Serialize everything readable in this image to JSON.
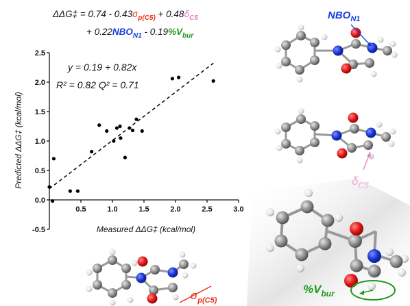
{
  "equation": {
    "line1": {
      "lhs": "ΔΔG‡",
      "eq_const": " = 0.74 - 0.43",
      "sigma": "σ",
      "sigma_sub": "p(C5)",
      "plus_d": " + 0.48",
      "delta": "δ",
      "delta_sub": "C5"
    },
    "line2": {
      "plus1": "+ 0.22",
      "nbo": "NBO",
      "nbo_sub": "N1",
      "minus": " - 0.19",
      "vbur": "%V",
      "vbur_sub": "bur"
    }
  },
  "chart_data": {
    "type": "scatter",
    "xlabel": "Measured ΔΔG‡  (kcal/mol)",
    "ylabel": "Predicted ΔΔG‡ (kcal/mol)",
    "xlim": [
      0,
      3.0
    ],
    "ylim": [
      -0.5,
      2.5
    ],
    "xticks": [
      "0.5",
      "1.0",
      "1.5",
      "2.0",
      "2.5",
      "3.0"
    ],
    "yticks": [
      "-0.5",
      "0.0",
      "0.5",
      "1.0",
      "1.5",
      "2.0",
      "2.5"
    ],
    "fit_equation": "y = 0.19 + 0.82x",
    "fit_stats": "R² = 0.82 Q² = 0.71",
    "fit_line": {
      "intercept": 0.19,
      "slope": 0.82,
      "x_range": [
        0,
        2.6
      ]
    },
    "points": [
      {
        "x": 0.0,
        "y": 0.22
      },
      {
        "x": 0.05,
        "y": -0.02
      },
      {
        "x": 0.07,
        "y": 0.7
      },
      {
        "x": 0.33,
        "y": 0.15
      },
      {
        "x": 0.45,
        "y": 0.15
      },
      {
        "x": 0.67,
        "y": 0.82
      },
      {
        "x": 0.79,
        "y": 1.27
      },
      {
        "x": 0.91,
        "y": 1.17
      },
      {
        "x": 1.02,
        "y": 1.0
      },
      {
        "x": 1.07,
        "y": 1.22
      },
      {
        "x": 1.12,
        "y": 1.25
      },
      {
        "x": 1.13,
        "y": 1.05
      },
      {
        "x": 1.2,
        "y": 0.72
      },
      {
        "x": 1.27,
        "y": 1.22
      },
      {
        "x": 1.32,
        "y": 1.18
      },
      {
        "x": 1.38,
        "y": 1.37
      },
      {
        "x": 1.47,
        "y": 1.17
      },
      {
        "x": 1.95,
        "y": 2.06
      },
      {
        "x": 2.05,
        "y": 2.08
      },
      {
        "x": 2.6,
        "y": 2.02
      }
    ]
  },
  "annotations": {
    "nbo": {
      "text": "NBO",
      "sub": "N1",
      "color": "#1a3fe0"
    },
    "delta": {
      "text": "δ",
      "sub": "C5",
      "color": "#f07ac8"
    },
    "sigma": {
      "text": "σ",
      "sub": "p(C5)",
      "color": "#e8331c"
    },
    "vbur": {
      "text": "%V",
      "sub": "bur",
      "color": "#1e9a1e"
    }
  },
  "colors": {
    "carbon": "#8a8a8a",
    "hydrogen": "#f2f2f2",
    "nitrogen": "#1530d0",
    "oxygen": "#e01010",
    "sigma": "#e8331c",
    "delta": "#f07ac8",
    "nbo": "#1a3fe0",
    "vbur": "#1e9a1e"
  }
}
